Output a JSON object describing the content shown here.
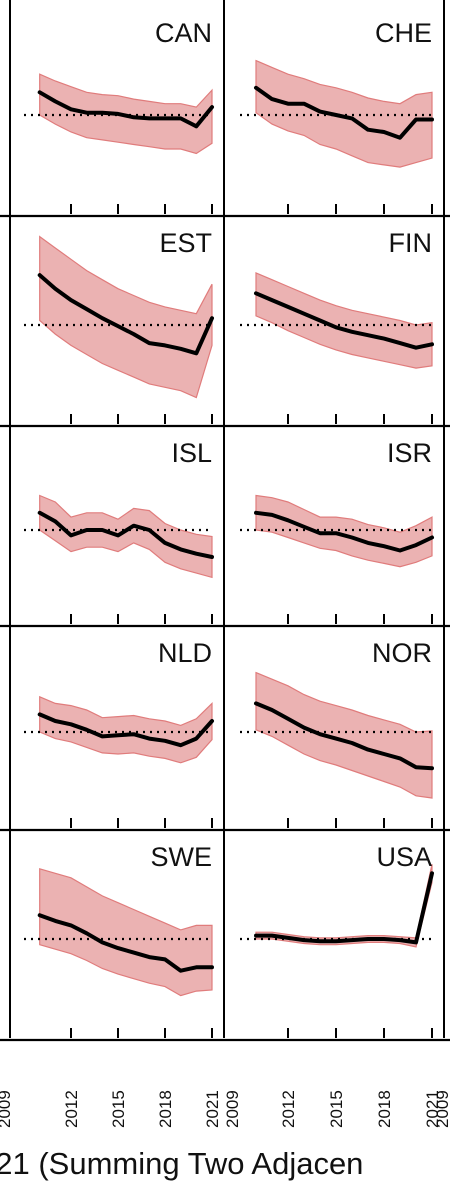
{
  "caption": "021 (Summing Two Adjacen",
  "chart_data": {
    "type": "line",
    "grid": false,
    "xlim": [
      2009,
      2021
    ],
    "x_ticks": [
      2012,
      2015,
      2018,
      2021
    ],
    "x_tick_labels": [
      "2012",
      "2015",
      "2018",
      "2021"
    ],
    "x_tick_labels_right": [
      "2009",
      "2012",
      "2015",
      "2018",
      "2021"
    ],
    "x_edge_label_left": "2009",
    "x_edge_label_right": "2009",
    "reference_line_y": 0,
    "ylim": [
      -1,
      1
    ],
    "line_color": "#000000",
    "band_color": "#e8a4a4",
    "band_edge_color": "#e07c7c",
    "reference_color": "#000000",
    "panels": [
      {
        "label": "CAN",
        "x": [
          2010,
          2011,
          2012,
          2013,
          2014,
          2015,
          2016,
          2017,
          2018,
          2019,
          2020,
          2021
        ],
        "y": [
          0.2,
          0.12,
          0.05,
          0.02,
          0.02,
          0.01,
          -0.02,
          -0.03,
          -0.03,
          -0.03,
          -0.1,
          0.07
        ],
        "lower": [
          0.0,
          -0.08,
          -0.15,
          -0.2,
          -0.22,
          -0.24,
          -0.26,
          -0.28,
          -0.3,
          -0.3,
          -0.34,
          -0.25
        ],
        "upper": [
          0.36,
          0.3,
          0.25,
          0.2,
          0.18,
          0.17,
          0.14,
          0.12,
          0.1,
          0.1,
          0.07,
          0.22
        ]
      },
      {
        "label": "CHE",
        "x": [
          2010,
          2011,
          2012,
          2013,
          2014,
          2015,
          2016,
          2017,
          2018,
          2019,
          2020,
          2021
        ],
        "y": [
          0.24,
          0.14,
          0.1,
          0.1,
          0.03,
          0.0,
          -0.03,
          -0.13,
          -0.15,
          -0.2,
          -0.04,
          -0.04
        ],
        "lower": [
          0.02,
          -0.08,
          -0.14,
          -0.18,
          -0.26,
          -0.3,
          -0.36,
          -0.42,
          -0.44,
          -0.46,
          -0.42,
          -0.38
        ],
        "upper": [
          0.48,
          0.42,
          0.36,
          0.32,
          0.27,
          0.24,
          0.2,
          0.15,
          0.12,
          0.1,
          0.18,
          0.2
        ]
      },
      {
        "label": "EST",
        "x": [
          2010,
          2011,
          2012,
          2013,
          2014,
          2015,
          2016,
          2017,
          2018,
          2019,
          2020,
          2021
        ],
        "y": [
          0.44,
          0.32,
          0.22,
          0.14,
          0.06,
          -0.01,
          -0.08,
          -0.16,
          -0.18,
          -0.21,
          -0.25,
          0.06
        ],
        "lower": [
          0.04,
          -0.08,
          -0.18,
          -0.26,
          -0.34,
          -0.4,
          -0.46,
          -0.52,
          -0.55,
          -0.58,
          -0.64,
          -0.18
        ],
        "upper": [
          0.78,
          0.68,
          0.58,
          0.48,
          0.4,
          0.32,
          0.26,
          0.2,
          0.16,
          0.13,
          0.1,
          0.36
        ]
      },
      {
        "label": "FIN",
        "x": [
          2010,
          2011,
          2012,
          2013,
          2014,
          2015,
          2016,
          2017,
          2018,
          2019,
          2020,
          2021
        ],
        "y": [
          0.28,
          0.22,
          0.16,
          0.1,
          0.04,
          -0.02,
          -0.06,
          -0.09,
          -0.12,
          -0.16,
          -0.2,
          -0.17
        ],
        "lower": [
          0.08,
          0.02,
          -0.05,
          -0.11,
          -0.17,
          -0.22,
          -0.26,
          -0.29,
          -0.32,
          -0.35,
          -0.38,
          -0.36
        ],
        "upper": [
          0.46,
          0.4,
          0.34,
          0.28,
          0.22,
          0.17,
          0.13,
          0.1,
          0.07,
          0.04,
          0.0,
          0.02
        ]
      },
      {
        "label": "ISL",
        "x": [
          2010,
          2011,
          2012,
          2013,
          2014,
          2015,
          2016,
          2017,
          2018,
          2019,
          2020,
          2021
        ],
        "y": [
          0.16,
          0.08,
          -0.05,
          0.0,
          0.0,
          -0.05,
          0.04,
          0.0,
          -0.12,
          -0.18,
          -0.22,
          -0.25
        ],
        "lower": [
          0.0,
          -0.1,
          -0.2,
          -0.16,
          -0.16,
          -0.2,
          -0.12,
          -0.18,
          -0.3,
          -0.36,
          -0.4,
          -0.44
        ],
        "upper": [
          0.32,
          0.26,
          0.12,
          0.16,
          0.16,
          0.1,
          0.2,
          0.18,
          0.06,
          0.0,
          -0.04,
          -0.06
        ]
      },
      {
        "label": "ISR",
        "x": [
          2010,
          2011,
          2012,
          2013,
          2014,
          2015,
          2016,
          2017,
          2018,
          2019,
          2020,
          2021
        ],
        "y": [
          0.16,
          0.14,
          0.09,
          0.03,
          -0.03,
          -0.03,
          -0.07,
          -0.12,
          -0.15,
          -0.19,
          -0.14,
          -0.07
        ],
        "lower": [
          0.0,
          -0.02,
          -0.07,
          -0.12,
          -0.17,
          -0.19,
          -0.24,
          -0.28,
          -0.31,
          -0.34,
          -0.3,
          -0.24
        ],
        "upper": [
          0.32,
          0.3,
          0.26,
          0.19,
          0.12,
          0.12,
          0.1,
          0.05,
          0.02,
          -0.02,
          0.04,
          0.12
        ]
      },
      {
        "label": "NLD",
        "x": [
          2010,
          2011,
          2012,
          2013,
          2014,
          2015,
          2016,
          2017,
          2018,
          2019,
          2020,
          2021
        ],
        "y": [
          0.16,
          0.1,
          0.07,
          0.02,
          -0.04,
          -0.03,
          -0.02,
          -0.06,
          -0.08,
          -0.12,
          -0.06,
          0.1
        ],
        "lower": [
          0.0,
          -0.06,
          -0.09,
          -0.14,
          -0.19,
          -0.2,
          -0.19,
          -0.22,
          -0.24,
          -0.28,
          -0.23,
          -0.07
        ],
        "upper": [
          0.32,
          0.26,
          0.24,
          0.2,
          0.13,
          0.14,
          0.15,
          0.12,
          0.1,
          0.06,
          0.12,
          0.26
        ]
      },
      {
        "label": "NOR",
        "x": [
          2010,
          2011,
          2012,
          2013,
          2014,
          2015,
          2016,
          2017,
          2018,
          2019,
          2020,
          2021
        ],
        "y": [
          0.26,
          0.2,
          0.12,
          0.04,
          -0.02,
          -0.06,
          -0.1,
          -0.16,
          -0.2,
          -0.24,
          -0.32,
          -0.33
        ],
        "lower": [
          0.02,
          -0.04,
          -0.12,
          -0.2,
          -0.26,
          -0.3,
          -0.35,
          -0.4,
          -0.45,
          -0.5,
          -0.58,
          -0.6
        ],
        "upper": [
          0.54,
          0.48,
          0.42,
          0.34,
          0.28,
          0.24,
          0.2,
          0.15,
          0.11,
          0.07,
          0.0,
          0.01
        ]
      },
      {
        "label": "SWE",
        "x": [
          2010,
          2011,
          2012,
          2013,
          2014,
          2015,
          2016,
          2017,
          2018,
          2019,
          2020,
          2021
        ],
        "y": [
          0.21,
          0.16,
          0.12,
          0.05,
          -0.03,
          -0.08,
          -0.12,
          -0.16,
          -0.18,
          -0.28,
          -0.25,
          -0.25
        ],
        "lower": [
          -0.05,
          -0.09,
          -0.13,
          -0.19,
          -0.26,
          -0.31,
          -0.35,
          -0.39,
          -0.42,
          -0.5,
          -0.46,
          -0.45
        ],
        "upper": [
          0.62,
          0.58,
          0.54,
          0.46,
          0.38,
          0.32,
          0.26,
          0.2,
          0.14,
          0.08,
          0.12,
          0.12
        ]
      },
      {
        "label": "USA",
        "x": [
          2010,
          2011,
          2012,
          2013,
          2014,
          2015,
          2016,
          2017,
          2018,
          2019,
          2020,
          2021
        ],
        "y": [
          0.03,
          0.03,
          0.01,
          -0.01,
          -0.02,
          -0.02,
          -0.01,
          0.0,
          0.0,
          -0.01,
          -0.03,
          0.58
        ],
        "lower": [
          0.0,
          0.0,
          -0.02,
          -0.04,
          -0.05,
          -0.05,
          -0.04,
          -0.03,
          -0.03,
          -0.04,
          -0.07,
          0.5
        ],
        "upper": [
          0.06,
          0.06,
          0.04,
          0.02,
          0.01,
          0.01,
          0.02,
          0.03,
          0.03,
          0.02,
          0.01,
          0.66
        ]
      }
    ]
  }
}
